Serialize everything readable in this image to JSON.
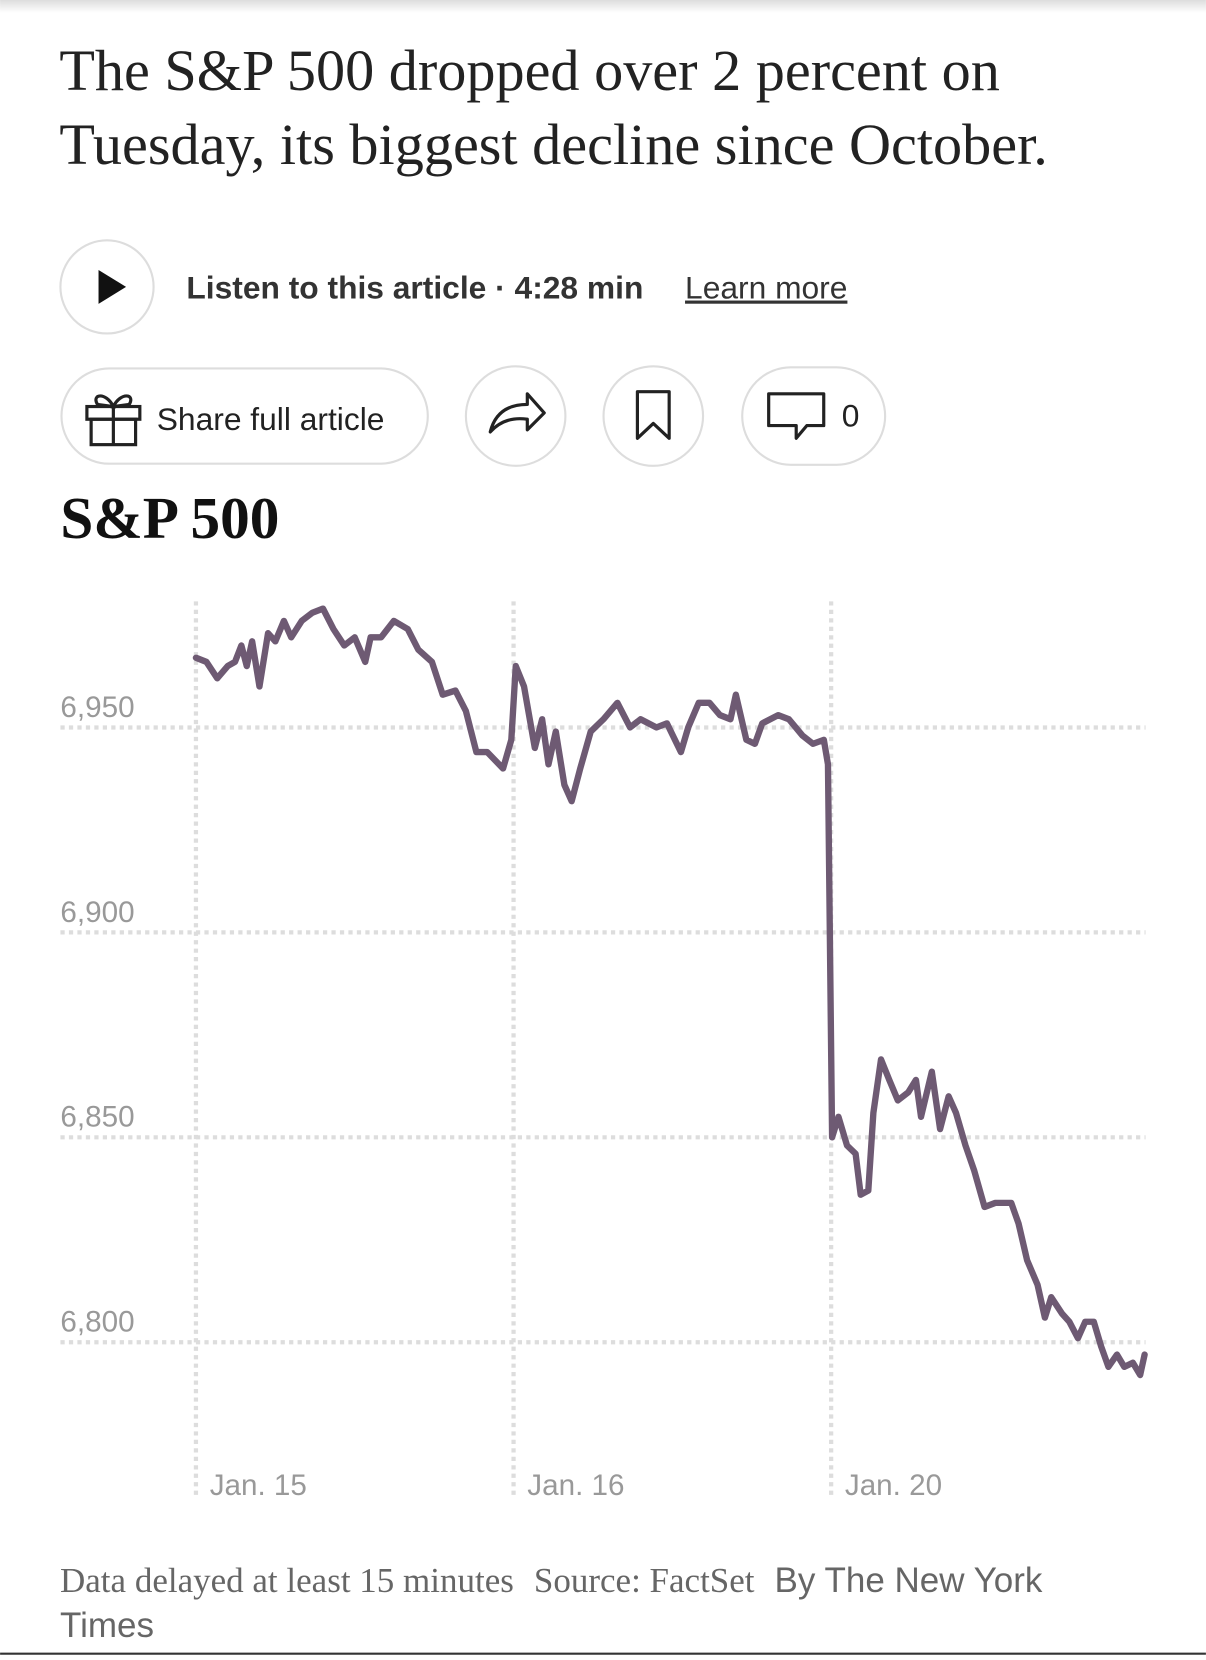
{
  "headline": {
    "lines": [
      "The S&P 500 dropped over 2 percent on",
      "Tuesday, its biggest decline since October."
    ]
  },
  "audio": {
    "label": "Listen to this article · 4:28 min",
    "link": "Learn more"
  },
  "actions": {
    "share": "Share full article",
    "comment_count": "0"
  },
  "chart_data": {
    "type": "line",
    "title": "S&P 500",
    "color": "#6e5a73",
    "grid": true,
    "xlim": [
      0,
      3
    ],
    "xticks": [
      {
        "value": 0,
        "label": "Jan. 15"
      },
      {
        "value": 1,
        "label": "Jan. 16"
      },
      {
        "value": 2,
        "label": "Jan. 20"
      }
    ],
    "ylim": [
      6770,
      6980
    ],
    "yticks": [
      {
        "value": 6800,
        "label": "6,800"
      },
      {
        "value": 6850,
        "label": "6,850"
      },
      {
        "value": 6900,
        "label": "6,900"
      },
      {
        "value": 6950,
        "label": "6,950"
      }
    ],
    "x": [
      0,
      0.033,
      0.067,
      0.1,
      0.123,
      0.143,
      0.16,
      0.177,
      0.2,
      0.227,
      0.25,
      0.277,
      0.3,
      0.333,
      0.367,
      0.4,
      0.433,
      0.467,
      0.5,
      0.533,
      0.55,
      0.583,
      0.623,
      0.667,
      0.7,
      0.743,
      0.777,
      0.817,
      0.85,
      0.883,
      0.917,
      0.967,
      0.993,
      1.007,
      1.033,
      1.067,
      1.09,
      1.11,
      1.133,
      1.16,
      1.183,
      1.21,
      1.243,
      1.283,
      1.327,
      1.367,
      1.4,
      1.45,
      1.483,
      1.527,
      1.55,
      1.583,
      1.617,
      1.65,
      1.683,
      1.7,
      1.733,
      1.76,
      1.783,
      1.833,
      1.867,
      1.91,
      1.943,
      1.977,
      1.99,
      2.003,
      2.023,
      2.05,
      2.077,
      2.093,
      2.117,
      2.133,
      2.157,
      2.183,
      2.21,
      2.243,
      2.267,
      2.283,
      2.317,
      2.343,
      2.37,
      2.393,
      2.423,
      2.45,
      2.483,
      2.517,
      2.567,
      2.59,
      2.617,
      2.65,
      2.673,
      2.693,
      2.727,
      2.75,
      2.777,
      2.8,
      2.827,
      2.85,
      2.873,
      2.9,
      2.923,
      2.95,
      2.973,
      2.987
    ],
    "values": [
      6967,
      6966,
      6962,
      6965,
      6966,
      6970,
      6965,
      6971,
      6960,
      6973,
      6971,
      6976,
      6972,
      6976,
      6978,
      6979,
      6974,
      6970,
      6972,
      6966,
      6972,
      6972,
      6976,
      6974,
      6969,
      6966,
      6958,
      6959,
      6954,
      6944,
      6944,
      6940,
      6947,
      6965,
      6960,
      6945,
      6952,
      6941,
      6949,
      6936,
      6932,
      6940,
      6949,
      6952,
      6956,
      6950,
      6952,
      6950,
      6951,
      6944,
      6950,
      6956,
      6956,
      6953,
      6952,
      6958,
      6947,
      6946,
      6951,
      6953,
      6952,
      6948,
      6946,
      6947,
      6941,
      6850,
      6855,
      6848,
      6846,
      6836,
      6837,
      6856,
      6869,
      6864,
      6859,
      6861,
      6864,
      6855,
      6866,
      6852,
      6860,
      6856,
      6848,
      6842,
      6833,
      6834,
      6834,
      6829,
      6820,
      6814,
      6806,
      6811,
      6807,
      6805,
      6801,
      6805,
      6805,
      6799,
      6794,
      6797,
      6794,
      6795,
      6792,
      6797
    ]
  },
  "footer": {
    "delay": "Data delayed at least 15 minutes",
    "source": "Source: FactSet",
    "byline": "By The New York Times"
  }
}
